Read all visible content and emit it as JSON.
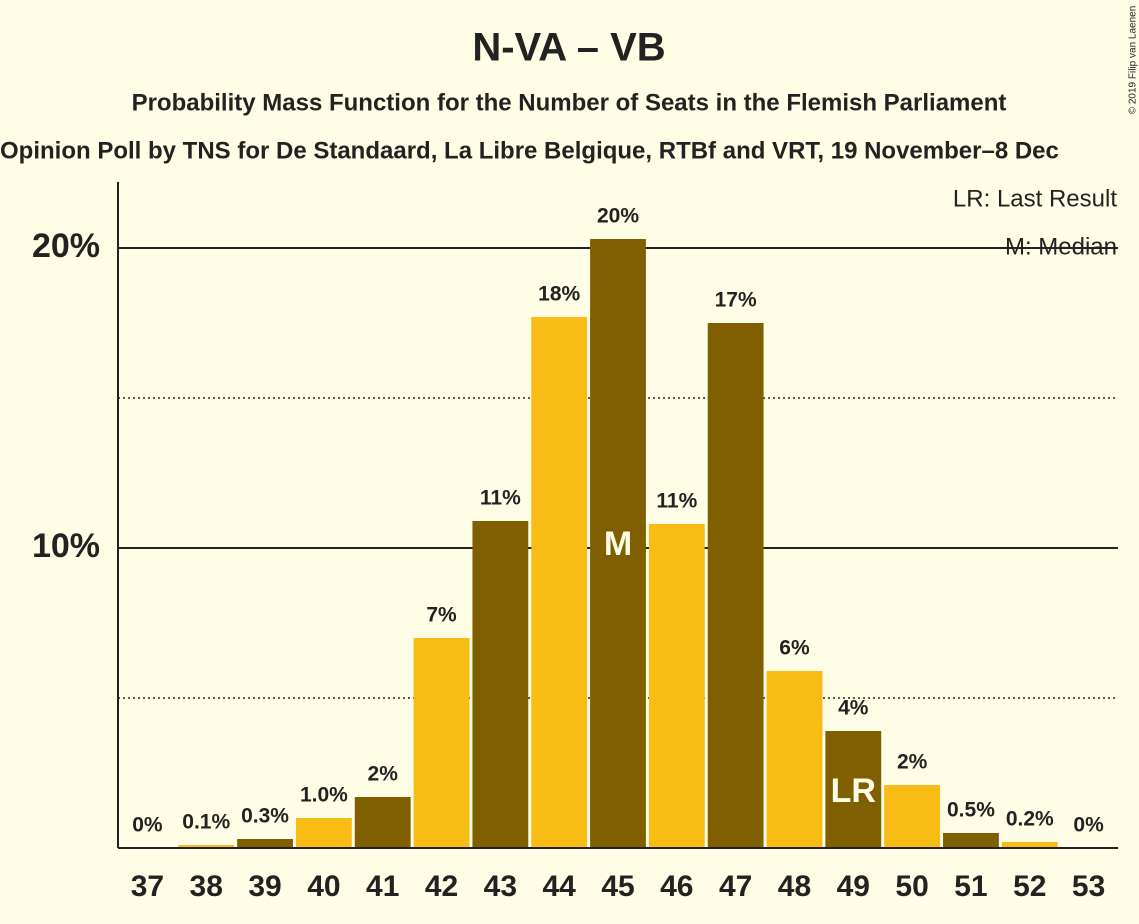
{
  "chart_data": {
    "type": "bar",
    "title": "N-VA – VB",
    "subtitle": "Probability Mass Function for the Number of Seats in the Flemish Parliament",
    "caption": "Opinion Poll by TNS for De Standaard, La Libre Belgique, RTBf and VRT, 19 November–8 Dec",
    "copyright": "© 2019 Filip van Laenen",
    "legend": [
      "LR: Last Result",
      "M: Median"
    ],
    "categories": [
      "37",
      "38",
      "39",
      "40",
      "41",
      "42",
      "43",
      "44",
      "45",
      "46",
      "47",
      "48",
      "49",
      "50",
      "51",
      "52",
      "53"
    ],
    "values": [
      0,
      0.1,
      0.3,
      1.0,
      1.7,
      7.0,
      10.9,
      17.7,
      20.3,
      10.8,
      17.5,
      5.9,
      3.9,
      2.1,
      0.5,
      0.2,
      0
    ],
    "value_labels": [
      "0%",
      "0.1%",
      "0.3%",
      "1.0%",
      "2%",
      "7%",
      "11%",
      "18%",
      "20%",
      "11%",
      "17%",
      "6%",
      "4%",
      "2%",
      "0.5%",
      "0.2%",
      "0%"
    ],
    "colors": [
      "#7f5f00",
      "#f9bc15",
      "#7f5f00",
      "#f9bc15",
      "#7f5f00",
      "#f9bc15",
      "#7f5f00",
      "#f9bc15",
      "#7f5f00",
      "#f9bc15",
      "#7f5f00",
      "#f9bc15",
      "#7f5f00",
      "#f9bc15",
      "#7f5f00",
      "#f9bc15",
      "#7f5f00"
    ],
    "annotations": [
      {
        "category": "45",
        "text": "M"
      },
      {
        "category": "49",
        "text": "LR"
      }
    ],
    "ylim": [
      0,
      22.2
    ],
    "yticks": [
      {
        "value": 10,
        "label": "10%"
      },
      {
        "value": 20,
        "label": "20%"
      }
    ],
    "minor_yticks": [
      5,
      15
    ],
    "grid": true
  }
}
